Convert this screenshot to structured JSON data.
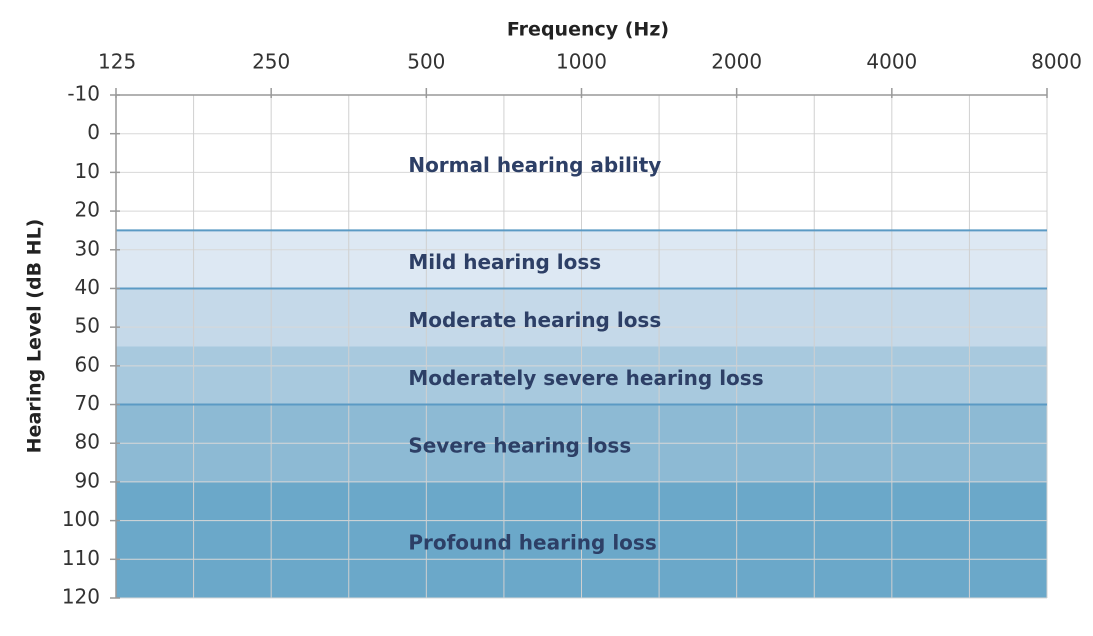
{
  "chart_data": {
    "type": "audiogram",
    "x_label": "Frequency (Hz)",
    "y_label": "Hearing Level (dB HL)",
    "x_log_base": 2,
    "xlim": [
      125,
      8000
    ],
    "xticks": [
      125,
      250,
      500,
      1000,
      2000,
      4000,
      8000
    ],
    "ylim": [
      -10,
      120
    ],
    "y_inverted": true,
    "yticks": [
      -10,
      0,
      10,
      20,
      30,
      40,
      50,
      60,
      70,
      80,
      90,
      100,
      110,
      120
    ],
    "grid": true,
    "bands": [
      {
        "name": "Normal hearing ability",
        "color": "#ffffff",
        "range": [
          -10,
          25
        ],
        "top_line": false
      },
      {
        "name": "Mild hearing loss",
        "color": "#dde8f3",
        "range": [
          25,
          40
        ],
        "top_line": true
      },
      {
        "name": "Moderate hearing loss",
        "color": "#c5d9e9",
        "range": [
          40,
          55
        ],
        "top_line": true
      },
      {
        "name": "Moderately severe hearing loss",
        "color": "#a8c9de",
        "range": [
          55,
          70
        ],
        "top_line": false
      },
      {
        "name": "Severe hearing loss",
        "color": "#8dbad4",
        "range": [
          70,
          90
        ],
        "top_line": true
      },
      {
        "name": "Profound hearing loss",
        "color": "#6ba8c9",
        "range": [
          90,
          120
        ],
        "top_line": false
      }
    ],
    "line_color": "#5b9ac4"
  }
}
